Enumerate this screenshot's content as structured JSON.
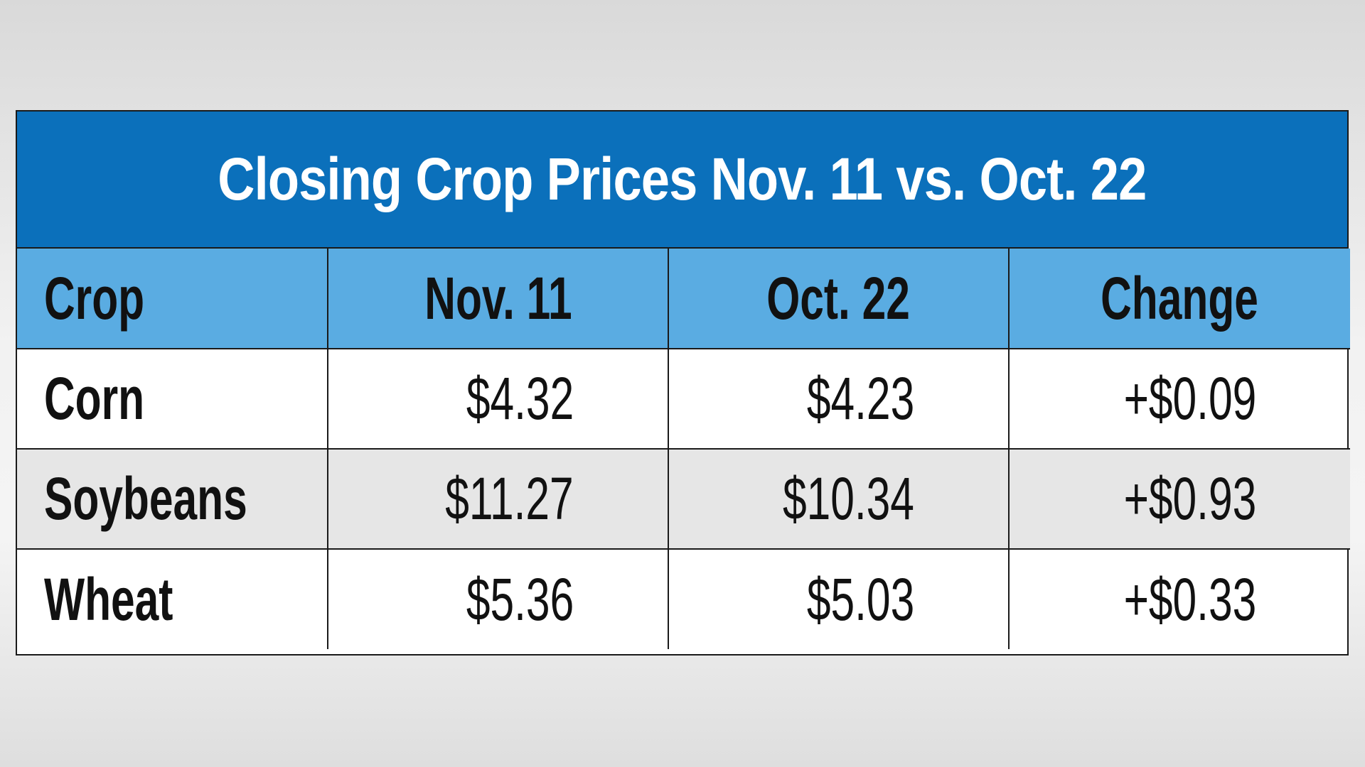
{
  "title": "Closing Crop Prices Nov. 11 vs. Oct. 22",
  "table": {
    "columns": [
      "Crop",
      "Nov. 11",
      "Oct. 22",
      "Change"
    ],
    "rows": [
      [
        "Corn",
        "$4.32",
        "$4.23",
        "+$0.09"
      ],
      [
        "Soybeans",
        "$11.27",
        "$10.34",
        "+$0.93"
      ],
      [
        "Wheat",
        "$5.36",
        "$5.03",
        "+$0.33"
      ]
    ]
  }
}
